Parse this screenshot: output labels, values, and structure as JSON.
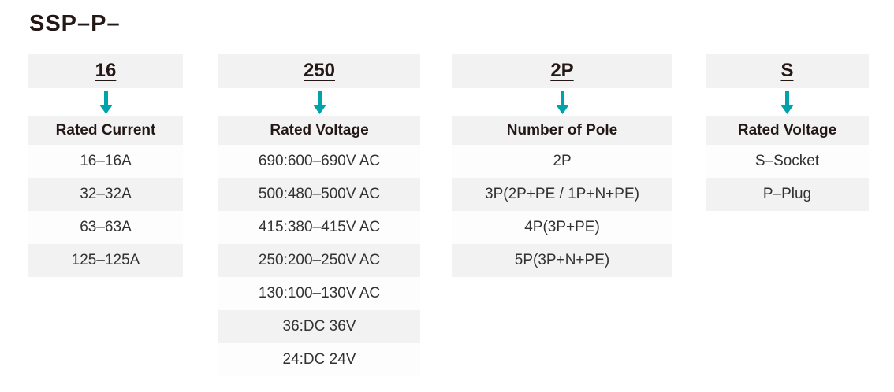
{
  "title": "SSP–P–",
  "colors": {
    "accent_teal": "#00a3a9",
    "box_gray": "#f2f2f3",
    "row_white": "#fdfdfd",
    "heading_text": "#231815",
    "row_text": "#323232"
  },
  "icons": {
    "arrow": "arrow-down-icon"
  },
  "columns": [
    {
      "code": "16",
      "label": "Rated Current",
      "options": [
        "16–16A",
        "32–32A",
        "63–63A",
        "125–125A"
      ]
    },
    {
      "code": "250",
      "label": "Rated Voltage",
      "options": [
        "690:600–690V AC",
        "500:480–500V AC",
        "415:380–415V AC",
        "250:200–250V AC",
        "130:100–130V AC",
        "36:DC 36V",
        "24:DC 24V"
      ]
    },
    {
      "code": "2P",
      "label": "Number of Pole",
      "options": [
        "2P",
        "3P(2P+PE / 1P+N+PE)",
        "4P(3P+PE)",
        "5P(3P+N+PE)"
      ]
    },
    {
      "code": "S",
      "label": "Rated Voltage",
      "options": [
        "S–Socket",
        "P–Plug"
      ]
    }
  ]
}
